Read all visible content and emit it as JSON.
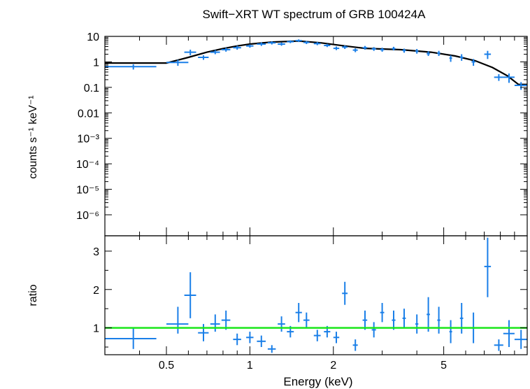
{
  "chart_data": {
    "type": "scatter",
    "title": "Swift−XRT WT spectrum of GRB 100424A",
    "xlabel": "Energy (keV)",
    "xscale": "log",
    "xlim": [
      0.3,
      10
    ],
    "xticks": [
      {
        "value": 0.5,
        "label": "0.5"
      },
      {
        "value": 1,
        "label": "1"
      },
      {
        "value": 2,
        "label": "2"
      },
      {
        "value": 5,
        "label": "5"
      }
    ],
    "colors": {
      "data": "#1a7fe8",
      "model": "#000000",
      "unity": "#19e619"
    },
    "panels": [
      {
        "name": "spectrum",
        "ylabel": "counts s⁻¹ keV⁻¹",
        "yscale": "log",
        "ylim": [
          1.5e-07,
          10
        ],
        "yticks": [
          {
            "value": 10,
            "label": "10"
          },
          {
            "value": 1,
            "label": "1"
          },
          {
            "value": 0.1,
            "label": "0.1"
          },
          {
            "value": 0.01,
            "label": "0.01"
          },
          {
            "value": 0.001,
            "label": "10⁻³"
          },
          {
            "value": 0.0001,
            "label": "10⁻⁴"
          },
          {
            "value": 1e-05,
            "label": "10⁻⁵"
          },
          {
            "value": 1e-06,
            "label": "10⁻⁶"
          }
        ],
        "data": [
          {
            "x": 0.38,
            "xlo": 0.3,
            "xhi": 0.46,
            "y": 0.65,
            "ylo": 0.5,
            "yhi": 0.8
          },
          {
            "x": 0.55,
            "xlo": 0.5,
            "xhi": 0.6,
            "y": 0.95,
            "ylo": 0.7,
            "yhi": 1.2
          },
          {
            "x": 0.61,
            "xlo": 0.58,
            "xhi": 0.64,
            "y": 2.4,
            "ylo": 1.8,
            "yhi": 3.0
          },
          {
            "x": 0.68,
            "xlo": 0.65,
            "xhi": 0.71,
            "y": 1.5,
            "ylo": 1.2,
            "yhi": 1.8
          },
          {
            "x": 0.75,
            "xlo": 0.72,
            "xhi": 0.78,
            "y": 2.4,
            "ylo": 2.0,
            "yhi": 2.9
          },
          {
            "x": 0.82,
            "xlo": 0.79,
            "xhi": 0.85,
            "y": 3.0,
            "ylo": 2.5,
            "yhi": 3.6
          },
          {
            "x": 0.9,
            "xlo": 0.87,
            "xhi": 0.93,
            "y": 3.6,
            "ylo": 3.0,
            "yhi": 4.3
          },
          {
            "x": 1.0,
            "xlo": 0.97,
            "xhi": 1.03,
            "y": 4.2,
            "ylo": 3.6,
            "yhi": 5.0
          },
          {
            "x": 1.1,
            "xlo": 1.06,
            "xhi": 1.14,
            "y": 5.0,
            "ylo": 4.2,
            "yhi": 5.8
          },
          {
            "x": 1.2,
            "xlo": 1.16,
            "xhi": 1.24,
            "y": 5.6,
            "ylo": 4.8,
            "yhi": 6.4
          },
          {
            "x": 1.3,
            "xlo": 1.26,
            "xhi": 1.34,
            "y": 5.0,
            "ylo": 4.3,
            "yhi": 5.8
          },
          {
            "x": 1.4,
            "xlo": 1.36,
            "xhi": 1.44,
            "y": 6.2,
            "ylo": 5.4,
            "yhi": 7.0
          },
          {
            "x": 1.5,
            "xlo": 1.46,
            "xhi": 1.54,
            "y": 6.8,
            "ylo": 6.0,
            "yhi": 7.6
          },
          {
            "x": 1.6,
            "xlo": 1.56,
            "xhi": 1.64,
            "y": 5.8,
            "ylo": 5.0,
            "yhi": 6.6
          },
          {
            "x": 1.75,
            "xlo": 1.7,
            "xhi": 1.8,
            "y": 5.2,
            "ylo": 4.5,
            "yhi": 6.0
          },
          {
            "x": 1.9,
            "xlo": 1.85,
            "xhi": 1.95,
            "y": 4.4,
            "ylo": 3.8,
            "yhi": 5.1
          },
          {
            "x": 2.05,
            "xlo": 2.0,
            "xhi": 2.1,
            "y": 3.4,
            "ylo": 2.9,
            "yhi": 4.0
          },
          {
            "x": 2.2,
            "xlo": 2.15,
            "xhi": 2.25,
            "y": 3.8,
            "ylo": 3.2,
            "yhi": 4.4
          },
          {
            "x": 2.4,
            "xlo": 2.35,
            "xhi": 2.45,
            "y": 2.9,
            "ylo": 2.4,
            "yhi": 3.4
          },
          {
            "x": 2.6,
            "xlo": 2.55,
            "xhi": 2.65,
            "y": 3.6,
            "ylo": 3.0,
            "yhi": 4.2
          },
          {
            "x": 2.8,
            "xlo": 2.75,
            "xhi": 2.85,
            "y": 3.2,
            "ylo": 2.7,
            "yhi": 3.8
          },
          {
            "x": 3.0,
            "xlo": 2.95,
            "xhi": 3.05,
            "y": 3.0,
            "ylo": 2.5,
            "yhi": 3.6
          },
          {
            "x": 3.3,
            "xlo": 3.25,
            "xhi": 3.35,
            "y": 3.3,
            "ylo": 2.8,
            "yhi": 3.9
          },
          {
            "x": 3.6,
            "xlo": 3.55,
            "xhi": 3.65,
            "y": 2.8,
            "ylo": 2.3,
            "yhi": 3.3
          },
          {
            "x": 4.0,
            "xlo": 3.95,
            "xhi": 4.05,
            "y": 2.6,
            "ylo": 2.1,
            "yhi": 3.2
          },
          {
            "x": 4.4,
            "xlo": 4.34,
            "xhi": 4.46,
            "y": 2.1,
            "ylo": 1.7,
            "yhi": 2.6
          },
          {
            "x": 4.8,
            "xlo": 4.74,
            "xhi": 4.86,
            "y": 2.2,
            "ylo": 1.7,
            "yhi": 2.7
          },
          {
            "x": 5.3,
            "xlo": 5.24,
            "xhi": 5.36,
            "y": 1.4,
            "ylo": 1.0,
            "yhi": 1.8
          },
          {
            "x": 5.8,
            "xlo": 5.72,
            "xhi": 5.88,
            "y": 1.5,
            "ylo": 1.1,
            "yhi": 2.0
          },
          {
            "x": 6.4,
            "xlo": 6.3,
            "xhi": 6.5,
            "y": 1.0,
            "ylo": 0.7,
            "yhi": 1.3
          },
          {
            "x": 7.2,
            "xlo": 7.0,
            "xhi": 7.4,
            "y": 2.0,
            "ylo": 1.3,
            "yhi": 2.7
          },
          {
            "x": 7.9,
            "xlo": 7.6,
            "xhi": 8.2,
            "y": 0.25,
            "ylo": 0.18,
            "yhi": 0.33
          },
          {
            "x": 8.6,
            "xlo": 8.2,
            "xhi": 9.0,
            "y": 0.25,
            "ylo": 0.15,
            "yhi": 0.35
          },
          {
            "x": 9.5,
            "xlo": 9.0,
            "xhi": 10.0,
            "y": 0.12,
            "ylo": 0.08,
            "yhi": 0.16
          }
        ],
        "model": [
          {
            "x": 0.3,
            "y": 0.9
          },
          {
            "x": 0.5,
            "y": 0.9
          },
          {
            "x": 0.6,
            "y": 1.5
          },
          {
            "x": 0.7,
            "y": 2.4
          },
          {
            "x": 0.8,
            "y": 3.3
          },
          {
            "x": 0.9,
            "y": 4.2
          },
          {
            "x": 1.0,
            "y": 5.0
          },
          {
            "x": 1.2,
            "y": 6.0
          },
          {
            "x": 1.5,
            "y": 6.6
          },
          {
            "x": 1.8,
            "y": 5.6
          },
          {
            "x": 2.2,
            "y": 4.2
          },
          {
            "x": 2.6,
            "y": 3.4
          },
          {
            "x": 3.5,
            "y": 3.0
          },
          {
            "x": 4.5,
            "y": 2.4
          },
          {
            "x": 5.5,
            "y": 1.7
          },
          {
            "x": 6.5,
            "y": 1.1
          },
          {
            "x": 7.5,
            "y": 0.6
          },
          {
            "x": 8.5,
            "y": 0.28
          },
          {
            "x": 9.3,
            "y": 0.13
          },
          {
            "x": 10.0,
            "y": 0.13
          }
        ]
      },
      {
        "name": "ratio",
        "ylabel": "ratio",
        "yscale": "linear",
        "ylim": [
          0.3,
          3.4
        ],
        "yticks": [
          {
            "value": 1,
            "label": "1"
          },
          {
            "value": 2,
            "label": "2"
          },
          {
            "value": 3,
            "label": "3"
          }
        ],
        "unity": 1,
        "data": [
          {
            "x": 0.38,
            "xlo": 0.3,
            "xhi": 0.46,
            "y": 0.72,
            "ylo": 0.45,
            "yhi": 1.0
          },
          {
            "x": 0.55,
            "xlo": 0.5,
            "xhi": 0.6,
            "y": 1.1,
            "ylo": 0.85,
            "yhi": 1.55
          },
          {
            "x": 0.61,
            "xlo": 0.58,
            "xhi": 0.64,
            "y": 1.85,
            "ylo": 1.25,
            "yhi": 2.45
          },
          {
            "x": 0.68,
            "xlo": 0.65,
            "xhi": 0.71,
            "y": 0.87,
            "ylo": 0.65,
            "yhi": 1.1
          },
          {
            "x": 0.75,
            "xlo": 0.72,
            "xhi": 0.78,
            "y": 1.1,
            "ylo": 0.9,
            "yhi": 1.35
          },
          {
            "x": 0.82,
            "xlo": 0.79,
            "xhi": 0.85,
            "y": 1.2,
            "ylo": 0.95,
            "yhi": 1.45
          },
          {
            "x": 0.9,
            "xlo": 0.87,
            "xhi": 0.93,
            "y": 0.7,
            "ylo": 0.55,
            "yhi": 0.85
          },
          {
            "x": 1.0,
            "xlo": 0.97,
            "xhi": 1.03,
            "y": 0.75,
            "ylo": 0.6,
            "yhi": 0.9
          },
          {
            "x": 1.1,
            "xlo": 1.06,
            "xhi": 1.14,
            "y": 0.65,
            "ylo": 0.5,
            "yhi": 0.8
          },
          {
            "x": 1.2,
            "xlo": 1.16,
            "xhi": 1.24,
            "y": 0.45,
            "ylo": 0.35,
            "yhi": 0.55
          },
          {
            "x": 1.3,
            "xlo": 1.26,
            "xhi": 1.34,
            "y": 1.1,
            "ylo": 0.9,
            "yhi": 1.3
          },
          {
            "x": 1.4,
            "xlo": 1.36,
            "xhi": 1.44,
            "y": 0.9,
            "ylo": 0.75,
            "yhi": 1.05
          },
          {
            "x": 1.5,
            "xlo": 1.46,
            "xhi": 1.54,
            "y": 1.4,
            "ylo": 1.15,
            "yhi": 1.65
          },
          {
            "x": 1.6,
            "xlo": 1.56,
            "xhi": 1.64,
            "y": 1.2,
            "ylo": 1.0,
            "yhi": 1.4
          },
          {
            "x": 1.75,
            "xlo": 1.7,
            "xhi": 1.8,
            "y": 0.8,
            "ylo": 0.65,
            "yhi": 0.95
          },
          {
            "x": 1.9,
            "xlo": 1.85,
            "xhi": 1.95,
            "y": 0.9,
            "ylo": 0.75,
            "yhi": 1.05
          },
          {
            "x": 2.05,
            "xlo": 2.0,
            "xhi": 2.1,
            "y": 0.75,
            "ylo": 0.6,
            "yhi": 0.9
          },
          {
            "x": 2.2,
            "xlo": 2.15,
            "xhi": 2.25,
            "y": 1.9,
            "ylo": 1.6,
            "yhi": 2.2
          },
          {
            "x": 2.4,
            "xlo": 2.35,
            "xhi": 2.45,
            "y": 0.55,
            "ylo": 0.4,
            "yhi": 0.7
          },
          {
            "x": 2.6,
            "xlo": 2.55,
            "xhi": 2.65,
            "y": 1.2,
            "ylo": 0.95,
            "yhi": 1.45
          },
          {
            "x": 2.8,
            "xlo": 2.75,
            "xhi": 2.85,
            "y": 0.95,
            "ylo": 0.75,
            "yhi": 1.15
          },
          {
            "x": 3.0,
            "xlo": 2.95,
            "xhi": 3.05,
            "y": 1.4,
            "ylo": 1.15,
            "yhi": 1.65
          },
          {
            "x": 3.3,
            "xlo": 3.25,
            "xhi": 3.35,
            "y": 1.2,
            "ylo": 0.95,
            "yhi": 1.45
          },
          {
            "x": 3.6,
            "xlo": 3.55,
            "xhi": 3.65,
            "y": 1.25,
            "ylo": 1.0,
            "yhi": 1.5
          },
          {
            "x": 4.0,
            "xlo": 3.95,
            "xhi": 4.05,
            "y": 1.1,
            "ylo": 0.85,
            "yhi": 1.35
          },
          {
            "x": 4.4,
            "xlo": 4.34,
            "xhi": 4.46,
            "y": 1.35,
            "ylo": 0.9,
            "yhi": 1.8
          },
          {
            "x": 4.8,
            "xlo": 4.74,
            "xhi": 4.86,
            "y": 1.2,
            "ylo": 0.85,
            "yhi": 1.55
          },
          {
            "x": 5.3,
            "xlo": 5.24,
            "xhi": 5.36,
            "y": 0.9,
            "ylo": 0.6,
            "yhi": 1.2
          },
          {
            "x": 5.8,
            "xlo": 5.72,
            "xhi": 5.88,
            "y": 1.25,
            "ylo": 0.85,
            "yhi": 1.65
          },
          {
            "x": 6.4,
            "xlo": 6.3,
            "xhi": 6.5,
            "y": 1.0,
            "ylo": 0.6,
            "yhi": 1.4
          },
          {
            "x": 7.2,
            "xlo": 7.0,
            "xhi": 7.4,
            "y": 2.6,
            "ylo": 1.8,
            "yhi": 3.35
          },
          {
            "x": 7.9,
            "xlo": 7.6,
            "xhi": 8.2,
            "y": 0.55,
            "ylo": 0.4,
            "yhi": 0.7
          },
          {
            "x": 8.6,
            "xlo": 8.2,
            "xhi": 9.0,
            "y": 0.85,
            "ylo": 0.5,
            "yhi": 1.2
          },
          {
            "x": 9.5,
            "xlo": 9.0,
            "xhi": 10.0,
            "y": 0.7,
            "ylo": 0.45,
            "yhi": 0.95
          }
        ]
      }
    ]
  }
}
